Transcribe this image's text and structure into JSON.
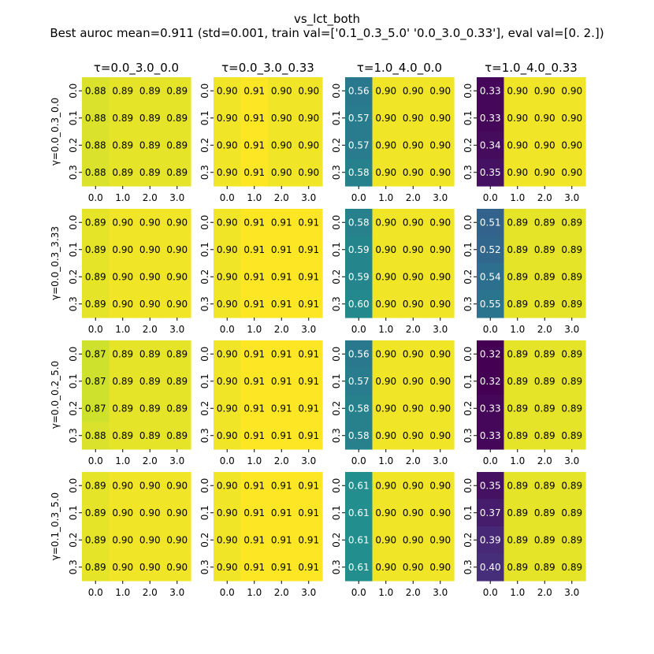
{
  "chart_data": {
    "type": "heatmap",
    "title": "vs_lct_both",
    "subtitle": "Best auroc mean=0.911 (std=0.001, train val=['0.1_0.3_5.0' '0.0_3.0_0.33'], eval val=[0. 2.])",
    "col_titles": [
      "τ=0.0_3.0_0.0",
      "τ=0.0_3.0_0.33",
      "τ=1.0_4.0_0.0",
      "τ=1.0_4.0_0.33"
    ],
    "row_labels": [
      "γ=0.0_0.3_0.0",
      "γ=0.0_0.3_3.33",
      "γ=0.0_0.2_5.0",
      "γ=0.1_0.3_5.0"
    ],
    "x_ticks": [
      "0.0",
      "1.0",
      "2.0",
      "3.0"
    ],
    "y_ticks": [
      "0.0",
      "0.1",
      "0.2",
      "0.3"
    ],
    "colormap": "viridis",
    "panels": [
      [
        [
          [
            0.88,
            0.89,
            0.89,
            0.89
          ],
          [
            0.88,
            0.89,
            0.89,
            0.89
          ],
          [
            0.88,
            0.89,
            0.89,
            0.89
          ],
          [
            0.88,
            0.89,
            0.89,
            0.89
          ]
        ],
        [
          [
            0.9,
            0.91,
            0.9,
            0.9
          ],
          [
            0.9,
            0.91,
            0.9,
            0.9
          ],
          [
            0.9,
            0.91,
            0.9,
            0.9
          ],
          [
            0.9,
            0.91,
            0.9,
            0.9
          ]
        ],
        [
          [
            0.56,
            0.9,
            0.9,
            0.9
          ],
          [
            0.57,
            0.9,
            0.9,
            0.9
          ],
          [
            0.57,
            0.9,
            0.9,
            0.9
          ],
          [
            0.58,
            0.9,
            0.9,
            0.9
          ]
        ],
        [
          [
            0.33,
            0.9,
            0.9,
            0.9
          ],
          [
            0.33,
            0.9,
            0.9,
            0.9
          ],
          [
            0.34,
            0.9,
            0.9,
            0.9
          ],
          [
            0.35,
            0.9,
            0.9,
            0.9
          ]
        ]
      ],
      [
        [
          [
            0.89,
            0.9,
            0.9,
            0.9
          ],
          [
            0.89,
            0.9,
            0.9,
            0.9
          ],
          [
            0.89,
            0.9,
            0.9,
            0.9
          ],
          [
            0.89,
            0.9,
            0.9,
            0.9
          ]
        ],
        [
          [
            0.9,
            0.91,
            0.91,
            0.91
          ],
          [
            0.9,
            0.91,
            0.91,
            0.91
          ],
          [
            0.9,
            0.91,
            0.91,
            0.91
          ],
          [
            0.9,
            0.91,
            0.91,
            0.91
          ]
        ],
        [
          [
            0.58,
            0.9,
            0.9,
            0.9
          ],
          [
            0.59,
            0.9,
            0.9,
            0.9
          ],
          [
            0.59,
            0.9,
            0.9,
            0.9
          ],
          [
            0.6,
            0.9,
            0.9,
            0.9
          ]
        ],
        [
          [
            0.51,
            0.89,
            0.89,
            0.89
          ],
          [
            0.52,
            0.89,
            0.89,
            0.89
          ],
          [
            0.54,
            0.89,
            0.89,
            0.89
          ],
          [
            0.55,
            0.89,
            0.89,
            0.89
          ]
        ]
      ],
      [
        [
          [
            0.87,
            0.89,
            0.89,
            0.89
          ],
          [
            0.87,
            0.89,
            0.89,
            0.89
          ],
          [
            0.87,
            0.89,
            0.89,
            0.89
          ],
          [
            0.88,
            0.89,
            0.89,
            0.89
          ]
        ],
        [
          [
            0.9,
            0.91,
            0.91,
            0.91
          ],
          [
            0.9,
            0.91,
            0.91,
            0.91
          ],
          [
            0.9,
            0.91,
            0.91,
            0.91
          ],
          [
            0.9,
            0.91,
            0.91,
            0.91
          ]
        ],
        [
          [
            0.56,
            0.9,
            0.9,
            0.9
          ],
          [
            0.57,
            0.9,
            0.9,
            0.9
          ],
          [
            0.58,
            0.9,
            0.9,
            0.9
          ],
          [
            0.58,
            0.9,
            0.9,
            0.9
          ]
        ],
        [
          [
            0.32,
            0.89,
            0.89,
            0.89
          ],
          [
            0.32,
            0.89,
            0.89,
            0.89
          ],
          [
            0.33,
            0.89,
            0.89,
            0.89
          ],
          [
            0.33,
            0.89,
            0.89,
            0.89
          ]
        ]
      ],
      [
        [
          [
            0.89,
            0.9,
            0.9,
            0.9
          ],
          [
            0.89,
            0.9,
            0.9,
            0.9
          ],
          [
            0.89,
            0.9,
            0.9,
            0.9
          ],
          [
            0.89,
            0.9,
            0.9,
            0.9
          ]
        ],
        [
          [
            0.9,
            0.91,
            0.91,
            0.91
          ],
          [
            0.9,
            0.91,
            0.91,
            0.91
          ],
          [
            0.9,
            0.91,
            0.91,
            0.91
          ],
          [
            0.9,
            0.91,
            0.91,
            0.91
          ]
        ],
        [
          [
            0.61,
            0.9,
            0.9,
            0.9
          ],
          [
            0.61,
            0.9,
            0.9,
            0.9
          ],
          [
            0.61,
            0.9,
            0.9,
            0.9
          ],
          [
            0.61,
            0.9,
            0.9,
            0.9
          ]
        ],
        [
          [
            0.35,
            0.89,
            0.89,
            0.89
          ],
          [
            0.37,
            0.89,
            0.89,
            0.89
          ],
          [
            0.39,
            0.89,
            0.89,
            0.89
          ],
          [
            0.4,
            0.89,
            0.89,
            0.89
          ]
        ]
      ]
    ]
  }
}
